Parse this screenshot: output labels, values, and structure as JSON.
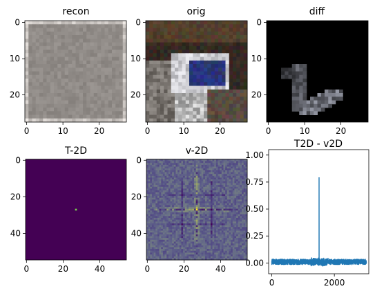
{
  "chart_data": [
    {
      "type": "heatmap",
      "title": "recon",
      "xlim": [
        0,
        27
      ],
      "ylim": [
        0,
        27
      ],
      "x_ticks": [
        "0",
        "10",
        "20"
      ],
      "y_ticks": [
        "0",
        "10",
        "20"
      ],
      "image_description": "28x28 grainy uniform gray reconstruction, lighter along borders",
      "base_color": "#8f8a86"
    },
    {
      "type": "heatmap",
      "title": "orig",
      "xlim": [
        0,
        27
      ],
      "ylim": [
        0,
        27
      ],
      "x_ticks": [
        "0",
        "10",
        "20"
      ],
      "y_ticks": [
        "0",
        "10",
        "20"
      ],
      "image_description": "28x28 low-res photo with dark background and white/blue object"
    },
    {
      "type": "heatmap",
      "title": "diff",
      "xlim": [
        0,
        27
      ],
      "ylim": [
        0,
        27
      ],
      "x_ticks": [
        "0",
        "10",
        "20"
      ],
      "y_ticks": [
        "0",
        "10",
        "20"
      ],
      "image_description": "mostly black with faint gray curved shape in lower-left"
    },
    {
      "type": "heatmap",
      "title": "T-2D",
      "xlim": [
        0,
        54
      ],
      "ylim": [
        0,
        54
      ],
      "x_ticks": [
        "0",
        "20",
        "40"
      ],
      "y_ticks": [
        "0",
        "20",
        "40"
      ],
      "colormap": "viridis",
      "background_color": "#440154",
      "peak": {
        "x": 27,
        "y": 27,
        "color": "#7ad151"
      }
    },
    {
      "type": "heatmap",
      "title": "v-2D",
      "xlim": [
        0,
        54
      ],
      "ylim": [
        0,
        54
      ],
      "x_ticks": [
        "0",
        "20",
        "40"
      ],
      "y_ticks": [
        "0",
        "20",
        "40"
      ],
      "colormap": "viridis",
      "background_color": "#3a6f8e",
      "peak": {
        "x": 27,
        "y": 27,
        "color": "#fde725"
      }
    },
    {
      "type": "line",
      "title": "T2D - v2D",
      "xlim": [
        -100,
        3100
      ],
      "ylim": [
        -0.1,
        1.05
      ],
      "x_ticks": [
        "0",
        "2000"
      ],
      "y_ticks": [
        "0.00",
        "0.25",
        "0.50",
        "0.75",
        "1.00"
      ],
      "x_tick_values": [
        0,
        2000
      ],
      "y_tick_values": [
        0,
        0.25,
        0.5,
        0.75,
        1.0
      ],
      "series_color": "#1f77b4",
      "n_points": 3025,
      "noise_amplitude": 0.025,
      "spike": {
        "x": 1512,
        "y": 0.79
      },
      "points": [
        [
          0,
          0.01
        ],
        [
          300,
          0.02
        ],
        [
          600,
          0.0
        ],
        [
          900,
          0.03
        ],
        [
          1200,
          0.02
        ],
        [
          1500,
          0.05
        ],
        [
          1512,
          0.79
        ],
        [
          1530,
          0.02
        ],
        [
          1800,
          0.01
        ],
        [
          2100,
          0.02
        ],
        [
          2400,
          0.01
        ],
        [
          2700,
          0.0
        ],
        [
          3024,
          0.0
        ]
      ]
    }
  ]
}
